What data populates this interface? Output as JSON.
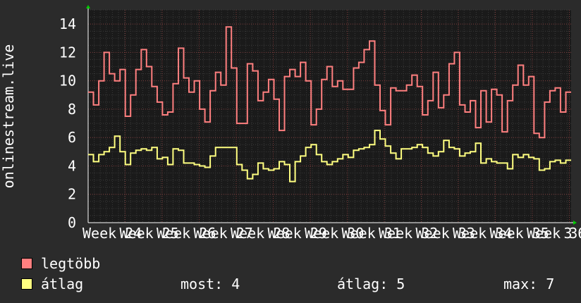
{
  "chart_data": {
    "type": "line",
    "ylabel": "onlinestream.live",
    "ylim": [
      0,
      15
    ],
    "yticks": [
      0,
      2,
      4,
      6,
      8,
      10,
      12,
      14
    ],
    "xticks": [
      "Week 24",
      "Week 25",
      "Week 26",
      "Week 27",
      "Week 28",
      "Week 29",
      "Week 30",
      "Week 31",
      "Week 32",
      "Week 33",
      "Week 34",
      "Week 35",
      "Week 36",
      "3"
    ],
    "grid": true,
    "legend_placement": "bottom-left",
    "series": [
      {
        "name": "legtöbb",
        "color": "#ff7f7f",
        "values": [
          9.2,
          8.3,
          10.0,
          12.0,
          10.5,
          10.0,
          10.8,
          7.5,
          9.0,
          10.8,
          12.2,
          11.0,
          9.6,
          8.5,
          7.6,
          7.8,
          9.8,
          12.3,
          10.2,
          9.2,
          10.0,
          8.0,
          7.1,
          9.3,
          10.6,
          9.7,
          13.8,
          10.9,
          7.0,
          7.0,
          11.2,
          10.7,
          8.6,
          9.2,
          10.1,
          8.7,
          6.5,
          10.3,
          10.8,
          10.3,
          11.3,
          10.0,
          6.9,
          8.0,
          10.1,
          11.0,
          9.6,
          10.0,
          9.4,
          9.4,
          10.9,
          11.3,
          12.2,
          12.8,
          9.7,
          7.9,
          6.9,
          9.5,
          9.3,
          9.3,
          9.7,
          10.4,
          9.6,
          7.6,
          8.6,
          10.6,
          8.1,
          9.0,
          11.2,
          12.0,
          8.3,
          7.8,
          8.6,
          6.7,
          9.3,
          7.1,
          9.4,
          9.0,
          6.4,
          8.6,
          9.7,
          11.1,
          9.7,
          10.3,
          6.3,
          6.0,
          8.5,
          9.3,
          9.5,
          7.8,
          9.2
        ],
        "stats": {
          "now": "4",
          "avg": "5",
          "max": "7"
        }
      },
      {
        "name": "átlag",
        "color": "#ffff80",
        "values": [
          4.8,
          4.3,
          4.8,
          5.0,
          5.3,
          6.1,
          5.0,
          4.1,
          4.9,
          5.1,
          5.2,
          5.1,
          5.3,
          4.5,
          4.6,
          4.1,
          5.2,
          5.1,
          4.2,
          4.2,
          4.1,
          4.0,
          3.9,
          4.7,
          5.3,
          5.3,
          5.3,
          5.3,
          4.1,
          3.7,
          3.1,
          3.4,
          4.2,
          3.8,
          3.7,
          3.8,
          4.3,
          4.1,
          2.9,
          4.3,
          4.7,
          5.3,
          5.5,
          4.8,
          4.3,
          4.1,
          4.3,
          4.5,
          4.8,
          4.6,
          5.1,
          5.2,
          5.3,
          5.5,
          6.5,
          5.9,
          5.4,
          4.9,
          4.5,
          5.2,
          5.2,
          5.3,
          5.5,
          5.3,
          4.9,
          4.7,
          5.0,
          5.8,
          5.3,
          5.2,
          4.7,
          4.9,
          5.0,
          5.6,
          4.2,
          4.5,
          4.3,
          4.2,
          4.2,
          3.8,
          4.8,
          4.6,
          4.8,
          4.6,
          4.5,
          3.7,
          3.8,
          4.3,
          4.4,
          4.2,
          4.4
        ]
      }
    ]
  },
  "stats": {
    "now_label": "most: 4",
    "avg_label": "átlag: 5",
    "max_label": "max: 7"
  }
}
